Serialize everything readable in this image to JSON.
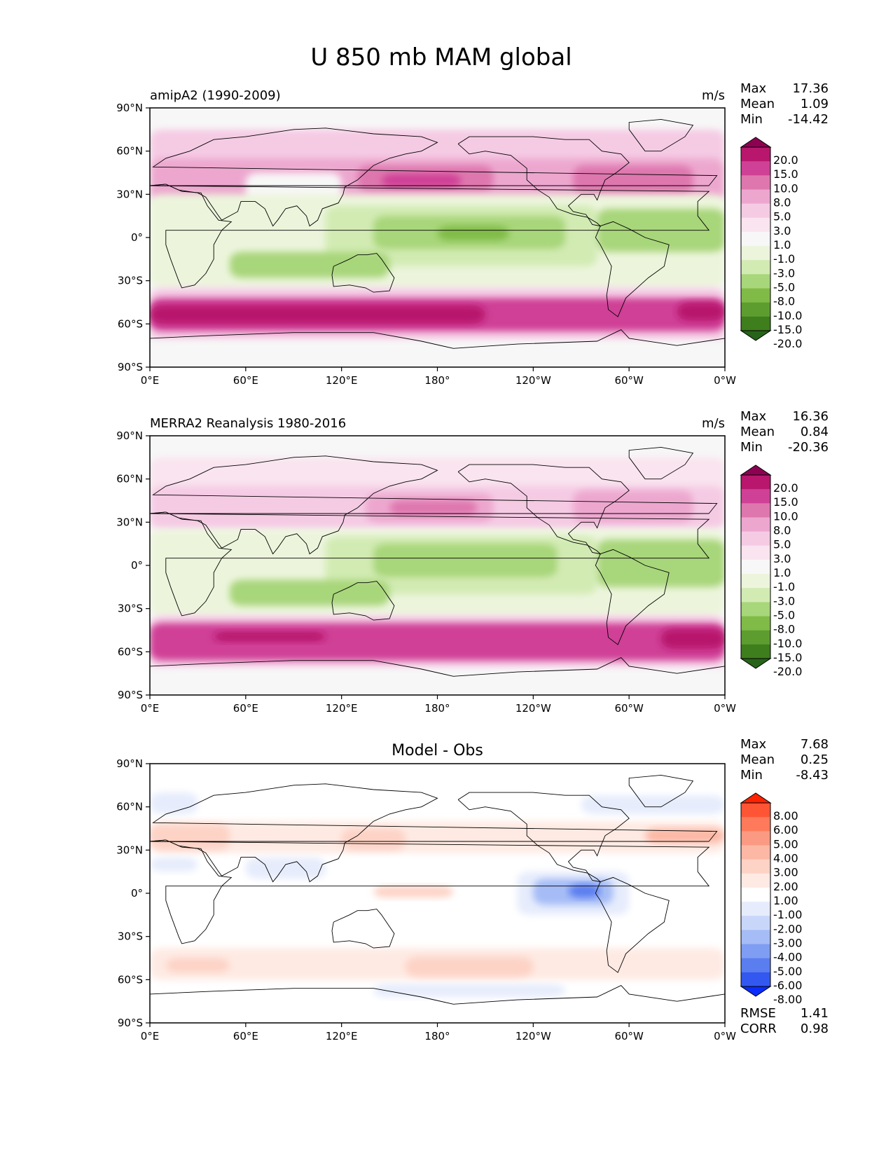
{
  "figure": {
    "title": "U 850 mb MAM global",
    "lat_ticks": [
      "90°N",
      "60°N",
      "30°N",
      "0°",
      "30°S",
      "60°S",
      "90°S"
    ],
    "lon_ticks": [
      "0°E",
      "60°E",
      "120°E",
      "180°",
      "120°W",
      "60°W",
      "0°W"
    ]
  },
  "panels": [
    {
      "title_left": "amipA2 (1990-2009)",
      "title_center": "",
      "units": "m/s",
      "stats": [
        {
          "label": "Max",
          "value": "17.36"
        },
        {
          "label": "Mean",
          "value": "1.09"
        },
        {
          "label": "Min",
          "value": "-14.42"
        }
      ],
      "colorbar": {
        "labels": [
          "20.0",
          "15.0",
          "10.0",
          "8.0",
          "5.0",
          "3.0",
          "1.0",
          "-1.0",
          "-3.0",
          "-5.0",
          "-8.0",
          "-10.0",
          "-15.0",
          "-20.0"
        ],
        "colors": [
          "#8e0152",
          "#b8176d",
          "#cf4196",
          "#de77ae",
          "#eda7cf",
          "#f5cbe4",
          "#f9e4ef",
          "#f7f7f7",
          "#ecf5dc",
          "#d2ebb3",
          "#a8d67a",
          "#80bb47",
          "#5d9d2f",
          "#3e7e1d",
          "#276419"
        ]
      },
      "fields": [
        {
          "lon0": 0,
          "lon1": 360,
          "lat0": -90,
          "lat1": 90,
          "color": "#f7f7f7"
        },
        {
          "lon0": 0,
          "lon1": 360,
          "lat0": 50,
          "lat1": 75,
          "color": "#f5cbe4"
        },
        {
          "lon0": 0,
          "lon1": 360,
          "lat0": 25,
          "lat1": 55,
          "color": "#eda7cf"
        },
        {
          "lon0": 130,
          "lon1": 215,
          "lat0": 32,
          "lat1": 50,
          "color": "#de77ae"
        },
        {
          "lon0": 145,
          "lon1": 195,
          "lat0": 35,
          "lat1": 44,
          "color": "#cf4196"
        },
        {
          "lon0": 265,
          "lon1": 340,
          "lat0": 30,
          "lat1": 50,
          "color": "#de77ae"
        },
        {
          "lon0": 60,
          "lon1": 120,
          "lat0": 22,
          "lat1": 45,
          "color": "#f7f7f7"
        },
        {
          "lon0": 0,
          "lon1": 360,
          "lat0": -35,
          "lat1": 30,
          "color": "#ecf5dc"
        },
        {
          "lon0": 110,
          "lon1": 280,
          "lat0": -20,
          "lat1": 22,
          "color": "#d2ebb3"
        },
        {
          "lon0": 140,
          "lon1": 260,
          "lat0": -8,
          "lat1": 15,
          "color": "#a8d67a"
        },
        {
          "lon0": 180,
          "lon1": 225,
          "lat0": -2,
          "lat1": 8,
          "color": "#80bb47"
        },
        {
          "lon0": 280,
          "lon1": 360,
          "lat0": -10,
          "lat1": 20,
          "color": "#a8d67a"
        },
        {
          "lon0": 50,
          "lon1": 150,
          "lat0": -28,
          "lat1": -10,
          "color": "#a8d67a"
        },
        {
          "lon0": 0,
          "lon1": 360,
          "lat0": -72,
          "lat1": -35,
          "color": "#f5cbe4"
        },
        {
          "lon0": 0,
          "lon1": 360,
          "lat0": -65,
          "lat1": -42,
          "color": "#cf4196"
        },
        {
          "lon0": 0,
          "lon1": 210,
          "lat0": -60,
          "lat1": -47,
          "color": "#b8176d"
        },
        {
          "lon0": 330,
          "lon1": 360,
          "lat0": -58,
          "lat1": -45,
          "color": "#b8176d"
        },
        {
          "lon0": 0,
          "lon1": 360,
          "lat0": -90,
          "lat1": -72,
          "color": "#f7f7f7"
        }
      ]
    },
    {
      "title_left": "MERRA2 Reanalysis 1980-2016",
      "title_center": "",
      "units": "m/s",
      "stats": [
        {
          "label": "Max",
          "value": "16.36"
        },
        {
          "label": "Mean",
          "value": "0.84"
        },
        {
          "label": "Min",
          "value": "-20.36"
        }
      ],
      "colorbar": {
        "labels": [
          "20.0",
          "15.0",
          "10.0",
          "8.0",
          "5.0",
          "3.0",
          "1.0",
          "-1.0",
          "-3.0",
          "-5.0",
          "-8.0",
          "-10.0",
          "-15.0",
          "-20.0"
        ],
        "colors": [
          "#8e0152",
          "#b8176d",
          "#cf4196",
          "#de77ae",
          "#eda7cf",
          "#f5cbe4",
          "#f9e4ef",
          "#f7f7f7",
          "#ecf5dc",
          "#d2ebb3",
          "#a8d67a",
          "#80bb47",
          "#5d9d2f",
          "#3e7e1d",
          "#276419"
        ]
      },
      "fields": [
        {
          "lon0": 0,
          "lon1": 360,
          "lat0": -90,
          "lat1": 90,
          "color": "#f7f7f7"
        },
        {
          "lon0": 0,
          "lon1": 360,
          "lat0": 48,
          "lat1": 75,
          "color": "#f9e4ef"
        },
        {
          "lon0": 0,
          "lon1": 360,
          "lat0": 25,
          "lat1": 55,
          "color": "#f5cbe4"
        },
        {
          "lon0": 135,
          "lon1": 215,
          "lat0": 30,
          "lat1": 50,
          "color": "#eda7cf"
        },
        {
          "lon0": 150,
          "lon1": 205,
          "lat0": 35,
          "lat1": 45,
          "color": "#de77ae"
        },
        {
          "lon0": 265,
          "lon1": 340,
          "lat0": 30,
          "lat1": 52,
          "color": "#eda7cf"
        },
        {
          "lon0": 0,
          "lon1": 360,
          "lat0": -35,
          "lat1": 25,
          "color": "#ecf5dc"
        },
        {
          "lon0": 110,
          "lon1": 280,
          "lat0": -20,
          "lat1": 20,
          "color": "#d2ebb3"
        },
        {
          "lon0": 140,
          "lon1": 255,
          "lat0": -8,
          "lat1": 15,
          "color": "#a8d67a"
        },
        {
          "lon0": 280,
          "lon1": 360,
          "lat0": -15,
          "lat1": 18,
          "color": "#a8d67a"
        },
        {
          "lon0": 50,
          "lon1": 150,
          "lat0": -28,
          "lat1": -10,
          "color": "#a8d67a"
        },
        {
          "lon0": 0,
          "lon1": 360,
          "lat0": -72,
          "lat1": -35,
          "color": "#f5cbe4"
        },
        {
          "lon0": 0,
          "lon1": 360,
          "lat0": -66,
          "lat1": -40,
          "color": "#cf4196"
        },
        {
          "lon0": 40,
          "lon1": 110,
          "lat0": -53,
          "lat1": -46,
          "color": "#b8176d"
        },
        {
          "lon0": 320,
          "lon1": 360,
          "lat0": -58,
          "lat1": -44,
          "color": "#b8176d"
        },
        {
          "lon0": 0,
          "lon1": 360,
          "lat0": -90,
          "lat1": -72,
          "color": "#f7f7f7"
        }
      ]
    },
    {
      "title_left": "",
      "title_center": "Model - Obs",
      "units": "",
      "stats": [
        {
          "label": "Max",
          "value": "7.68"
        },
        {
          "label": "Mean",
          "value": "0.25"
        },
        {
          "label": "Min",
          "value": "-8.43"
        }
      ],
      "extra_stats": [
        {
          "label": "RMSE",
          "value": "1.41"
        },
        {
          "label": "CORR",
          "value": "0.98"
        }
      ],
      "colorbar": {
        "labels": [
          "8.00",
          "6.00",
          "5.00",
          "4.00",
          "3.00",
          "2.00",
          "1.00",
          "-1.00",
          "-2.00",
          "-3.00",
          "-4.00",
          "-5.00",
          "-6.00",
          "-8.00"
        ],
        "colors": [
          "#ff2200",
          "#ff5535",
          "#ff7a5a",
          "#fb9a82",
          "#fcb8a5",
          "#fdd3c6",
          "#feeae3",
          "#ffffff",
          "#e6ecfc",
          "#c8d6fa",
          "#a5bcf6",
          "#7f9df3",
          "#5a7df0",
          "#3358f0",
          "#0a2cff"
        ]
      },
      "fields": [
        {
          "lon0": 0,
          "lon1": 360,
          "lat0": -90,
          "lat1": 90,
          "color": "#ffffff"
        },
        {
          "lon0": 0,
          "lon1": 360,
          "lat0": 28,
          "lat1": 50,
          "color": "#feeae3"
        },
        {
          "lon0": 0,
          "lon1": 50,
          "lat0": 30,
          "lat1": 48,
          "color": "#fdd3c6"
        },
        {
          "lon0": 120,
          "lon1": 160,
          "lat0": 30,
          "lat1": 45,
          "color": "#fdd3c6"
        },
        {
          "lon0": 310,
          "lon1": 360,
          "lat0": 35,
          "lat1": 45,
          "color": "#fcb8a5"
        },
        {
          "lon0": 0,
          "lon1": 30,
          "lat0": 55,
          "lat1": 70,
          "color": "#e6ecfc"
        },
        {
          "lon0": 270,
          "lon1": 360,
          "lat0": 55,
          "lat1": 68,
          "color": "#e6ecfc"
        },
        {
          "lon0": 230,
          "lon1": 300,
          "lat0": -15,
          "lat1": 15,
          "color": "#e6ecfc"
        },
        {
          "lon0": 240,
          "lon1": 290,
          "lat0": -8,
          "lat1": 10,
          "color": "#a5bcf6"
        },
        {
          "lon0": 262,
          "lon1": 282,
          "lat0": -3,
          "lat1": 6,
          "color": "#5a7df0"
        },
        {
          "lon0": 0,
          "lon1": 30,
          "lat0": 15,
          "lat1": 25,
          "color": "#e6ecfc"
        },
        {
          "lon0": 60,
          "lon1": 110,
          "lat0": 10,
          "lat1": 25,
          "color": "#e6ecfc"
        },
        {
          "lon0": 140,
          "lon1": 190,
          "lat0": -3,
          "lat1": 5,
          "color": "#fdd3c6"
        },
        {
          "lon0": 0,
          "lon1": 360,
          "lat0": -60,
          "lat1": -38,
          "color": "#feeae3"
        },
        {
          "lon0": 160,
          "lon1": 240,
          "lat0": -58,
          "lat1": -44,
          "color": "#fdd3c6"
        },
        {
          "lon0": 10,
          "lon1": 50,
          "lat0": -55,
          "lat1": -45,
          "color": "#fdd3c6"
        },
        {
          "lon0": 140,
          "lon1": 260,
          "lat0": -72,
          "lat1": -63,
          "color": "#e6ecfc"
        }
      ]
    }
  ]
}
